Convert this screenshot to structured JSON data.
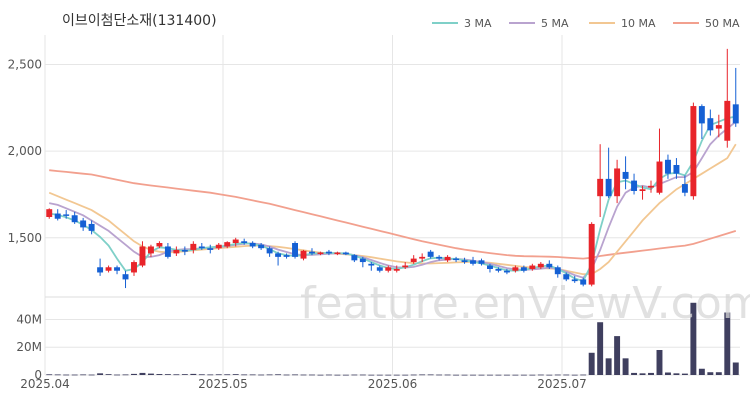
{
  "chart_data": {
    "type": "candlestick",
    "title": "이브이첨단소재(131400)",
    "watermark": "feature.enViewV.com",
    "legend": [
      {
        "name": "3 MA",
        "color": "#7fd0c8"
      },
      {
        "name": "5 MA",
        "color": "#b9a3cf"
      },
      {
        "name": "10 MA",
        "color": "#f2c792"
      },
      {
        "name": "50 MA",
        "color": "#f2a08e"
      }
    ],
    "colors": {
      "up": "#e8242a",
      "down": "#1560d4",
      "volume": "#3f3f5f",
      "grid": "#e6e6e6"
    },
    "price_axis": {
      "ticks": [
        1500,
        2000,
        2500
      ],
      "tick_labels": [
        "1,500",
        "2,000",
        "2,500"
      ],
      "range": [
        1170,
        2670
      ]
    },
    "volume_axis": {
      "ticks": [
        0,
        20,
        40
      ],
      "tick_labels": [
        "0",
        "20M",
        "40M"
      ],
      "range": [
        0,
        54
      ]
    },
    "x_ticks": [
      {
        "index": 0,
        "label": "2025.04"
      },
      {
        "index": 21,
        "label": "2025.05"
      },
      {
        "index": 41,
        "label": "2025.06"
      },
      {
        "index": 61,
        "label": "2025.07"
      }
    ],
    "ohlc": [
      [
        1620,
        1670,
        1610,
        1665
      ],
      [
        1640,
        1665,
        1600,
        1610
      ],
      [
        1635,
        1660,
        1610,
        1630
      ],
      [
        1630,
        1650,
        1580,
        1590
      ],
      [
        1600,
        1615,
        1540,
        1560
      ],
      [
        1580,
        1600,
        1520,
        1540
      ],
      [
        1330,
        1380,
        1280,
        1300
      ],
      [
        1310,
        1340,
        1300,
        1330
      ],
      [
        1330,
        1340,
        1290,
        1310
      ],
      [
        1290,
        1310,
        1210,
        1260
      ],
      [
        1300,
        1370,
        1280,
        1360
      ],
      [
        1340,
        1480,
        1330,
        1450
      ],
      [
        1410,
        1460,
        1390,
        1450
      ],
      [
        1450,
        1480,
        1440,
        1470
      ],
      [
        1450,
        1470,
        1380,
        1390
      ],
      [
        1410,
        1450,
        1395,
        1430
      ],
      [
        1430,
        1450,
        1400,
        1420
      ],
      [
        1430,
        1480,
        1410,
        1465
      ],
      [
        1450,
        1470,
        1430,
        1440
      ],
      [
        1440,
        1460,
        1410,
        1430
      ],
      [
        1440,
        1470,
        1430,
        1460
      ],
      [
        1450,
        1480,
        1440,
        1475
      ],
      [
        1470,
        1500,
        1450,
        1490
      ],
      [
        1480,
        1495,
        1460,
        1470
      ],
      [
        1470,
        1480,
        1440,
        1450
      ],
      [
        1460,
        1470,
        1430,
        1440
      ],
      [
        1440,
        1450,
        1390,
        1410
      ],
      [
        1410,
        1420,
        1340,
        1390
      ],
      [
        1400,
        1410,
        1380,
        1390
      ],
      [
        1470,
        1480,
        1380,
        1390
      ],
      [
        1380,
        1430,
        1370,
        1425
      ],
      [
        1420,
        1440,
        1400,
        1410
      ],
      [
        1410,
        1420,
        1400,
        1415
      ],
      [
        1420,
        1430,
        1400,
        1410
      ],
      [
        1410,
        1420,
        1400,
        1415
      ],
      [
        1415,
        1420,
        1400,
        1405
      ],
      [
        1400,
        1405,
        1360,
        1370
      ],
      [
        1380,
        1390,
        1330,
        1360
      ],
      [
        1350,
        1360,
        1310,
        1340
      ],
      [
        1330,
        1340,
        1300,
        1310
      ],
      [
        1310,
        1340,
        1300,
        1330
      ],
      [
        1310,
        1340,
        1300,
        1320
      ],
      [
        1330,
        1360,
        1320,
        1340
      ],
      [
        1360,
        1400,
        1350,
        1380
      ],
      [
        1380,
        1410,
        1360,
        1390
      ],
      [
        1420,
        1430,
        1380,
        1390
      ],
      [
        1390,
        1400,
        1370,
        1380
      ],
      [
        1370,
        1400,
        1360,
        1390
      ],
      [
        1380,
        1390,
        1360,
        1375
      ],
      [
        1370,
        1385,
        1350,
        1360
      ],
      [
        1370,
        1390,
        1340,
        1350
      ],
      [
        1370,
        1380,
        1340,
        1350
      ],
      [
        1340,
        1350,
        1300,
        1320
      ],
      [
        1320,
        1330,
        1300,
        1310
      ],
      [
        1310,
        1320,
        1290,
        1300
      ],
      [
        1310,
        1340,
        1300,
        1330
      ],
      [
        1330,
        1340,
        1300,
        1310
      ],
      [
        1320,
        1350,
        1310,
        1340
      ],
      [
        1330,
        1360,
        1320,
        1350
      ],
      [
        1350,
        1370,
        1320,
        1330
      ],
      [
        1330,
        1340,
        1270,
        1290
      ],
      [
        1290,
        1300,
        1250,
        1260
      ],
      [
        1260,
        1280,
        1240,
        1250
      ],
      [
        1260,
        1270,
        1220,
        1230
      ],
      [
        1230,
        1590,
        1220,
        1580
      ],
      [
        1740,
        2040,
        1620,
        1840
      ],
      [
        1840,
        2020,
        1730,
        1740
      ],
      [
        1740,
        1950,
        1700,
        1900
      ],
      [
        1880,
        1970,
        1780,
        1840
      ],
      [
        1830,
        1870,
        1750,
        1770
      ],
      [
        1770,
        1800,
        1720,
        1780
      ],
      [
        1790,
        1830,
        1760,
        1800
      ],
      [
        1760,
        2130,
        1750,
        1940
      ],
      [
        1950,
        1980,
        1840,
        1870
      ],
      [
        1920,
        1960,
        1840,
        1870
      ],
      [
        1810,
        1860,
        1740,
        1760
      ],
      [
        1740,
        2280,
        1720,
        2260
      ],
      [
        2260,
        2270,
        2070,
        2160
      ],
      [
        2190,
        2240,
        2090,
        2120
      ],
      [
        2130,
        2210,
        2080,
        2150
      ],
      [
        2060,
        2590,
        2020,
        2290
      ],
      [
        2270,
        2480,
        2140,
        2160
      ]
    ],
    "volume_m": [
      0.5,
      0.4,
      0.3,
      0.3,
      0.4,
      0.3,
      1.2,
      0.6,
      0.3,
      0.4,
      0.8,
      1.5,
      1.0,
      0.7,
      0.6,
      0.5,
      0.6,
      0.8,
      0.5,
      0.4,
      0.5,
      0.5,
      0.6,
      0.4,
      0.4,
      0.3,
      0.4,
      0.5,
      0.3,
      0.4,
      0.3,
      0.3,
      0.2,
      0.3,
      0.2,
      0.2,
      0.3,
      0.3,
      0.2,
      0.2,
      0.2,
      0.2,
      0.2,
      0.3,
      0.4,
      0.4,
      0.3,
      0.3,
      0.2,
      0.2,
      0.2,
      0.2,
      0.2,
      0.2,
      0.2,
      0.2,
      0.2,
      0.2,
      0.3,
      0.2,
      0.3,
      0.3,
      0.2,
      0.3,
      16,
      38,
      12,
      28,
      12,
      1.5,
      1.2,
      1.5,
      18,
      1.8,
      1.2,
      1.0,
      52,
      4.5,
      2.0,
      2.0,
      45,
      9
    ],
    "ma3": [
      1640,
      1632,
      1618,
      1600,
      1575,
      1545,
      1505,
      1455,
      1380,
      1310,
      1320,
      1360,
      1420,
      1445,
      1440,
      1430,
      1425,
      1430,
      1440,
      1445,
      1450,
      1455,
      1465,
      1470,
      1465,
      1455,
      1435,
      1410,
      1400,
      1395,
      1400,
      1408,
      1412,
      1413,
      1412,
      1410,
      1398,
      1380,
      1360,
      1340,
      1325,
      1320,
      1330,
      1345,
      1365,
      1382,
      1385,
      1380,
      1378,
      1370,
      1362,
      1352,
      1340,
      1325,
      1312,
      1310,
      1315,
      1325,
      1335,
      1340,
      1320,
      1295,
      1265,
      1250,
      1350,
      1550,
      1720,
      1820,
      1830,
      1810,
      1790,
      1780,
      1840,
      1870,
      1875,
      1860,
      1940,
      2060,
      2150,
      2170,
      2190,
      2200
    ],
    "ma5": [
      1700,
      1690,
      1670,
      1650,
      1630,
      1600,
      1570,
      1540,
      1500,
      1460,
      1420,
      1390,
      1390,
      1400,
      1420,
      1430,
      1435,
      1435,
      1440,
      1442,
      1446,
      1452,
      1460,
      1466,
      1468,
      1462,
      1450,
      1432,
      1418,
      1405,
      1400,
      1402,
      1405,
      1408,
      1410,
      1408,
      1400,
      1388,
      1372,
      1355,
      1340,
      1330,
      1328,
      1332,
      1345,
      1360,
      1370,
      1375,
      1378,
      1375,
      1368,
      1360,
      1350,
      1338,
      1325,
      1318,
      1315,
      1318,
      1322,
      1328,
      1320,
      1305,
      1285,
      1270,
      1320,
      1430,
      1560,
      1680,
      1760,
      1790,
      1800,
      1790,
      1810,
      1830,
      1850,
      1850,
      1880,
      1960,
      2040,
      2090,
      2130,
      2170
    ],
    "ma10": [
      1760,
      1740,
      1720,
      1700,
      1680,
      1660,
      1630,
      1600,
      1560,
      1520,
      1480,
      1450,
      1430,
      1420,
      1415,
      1418,
      1422,
      1428,
      1432,
      1436,
      1440,
      1444,
      1448,
      1452,
      1455,
      1455,
      1452,
      1448,
      1442,
      1435,
      1428,
      1420,
      1414,
      1410,
      1408,
      1405,
      1400,
      1395,
      1388,
      1380,
      1372,
      1364,
      1358,
      1354,
      1352,
      1352,
      1354,
      1356,
      1358,
      1360,
      1362,
      1360,
      1356,
      1350,
      1344,
      1338,
      1332,
      1328,
      1325,
      1323,
      1320,
      1310,
      1300,
      1290,
      1290,
      1320,
      1360,
      1420,
      1480,
      1540,
      1600,
      1650,
      1700,
      1740,
      1780,
      1810,
      1840,
      1870,
      1900,
      1930,
      1960,
      2040
    ],
    "ma50": [
      1890,
      1885,
      1880,
      1875,
      1870,
      1865,
      1855,
      1845,
      1835,
      1825,
      1815,
      1808,
      1802,
      1796,
      1790,
      1784,
      1778,
      1772,
      1766,
      1760,
      1752,
      1744,
      1736,
      1726,
      1716,
      1706,
      1696,
      1684,
      1672,
      1660,
      1648,
      1636,
      1624,
      1612,
      1600,
      1588,
      1576,
      1564,
      1552,
      1540,
      1528,
      1516,
      1504,
      1492,
      1480,
      1470,
      1460,
      1450,
      1440,
      1432,
      1425,
      1418,
      1412,
      1406,
      1400,
      1396,
      1394,
      1393,
      1392,
      1391,
      1389,
      1386,
      1383,
      1380,
      1385,
      1395,
      1402,
      1408,
      1414,
      1420,
      1426,
      1432,
      1438,
      1444,
      1450,
      1455,
      1465,
      1480,
      1495,
      1510,
      1525,
      1540
    ]
  }
}
